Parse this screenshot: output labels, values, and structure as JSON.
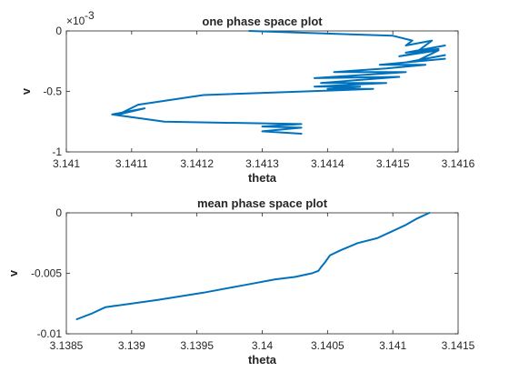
{
  "chart_data": [
    {
      "type": "line",
      "title": "one phase space plot",
      "xlabel": "theta",
      "ylabel": "v",
      "xlim": [
        3.141,
        3.1416
      ],
      "ylim": [
        -0.001,
        0
      ],
      "x_ticks": [
        3.141,
        3.1411,
        3.1412,
        3.1413,
        3.1414,
        3.1415,
        3.1416
      ],
      "x_tick_labels": [
        "3.141",
        "3.1411",
        "3.1412",
        "3.1413",
        "3.1414",
        "3.1415",
        "3.1416"
      ],
      "y_ticks": [
        0,
        -0.0005,
        -0.001
      ],
      "y_tick_labels": [
        "0",
        "-0.5",
        "-1"
      ],
      "y_exponent": {
        "base": "×10",
        "power": "-3"
      },
      "grid": false,
      "color": "#0072BD",
      "series": [
        {
          "x": [
            3.14128,
            3.1415,
            3.14153,
            3.14152,
            3.14156,
            3.14154,
            3.14158,
            3.14152,
            3.14157,
            3.14151,
            3.14157,
            3.14154,
            3.14158,
            3.14152,
            3.14158,
            3.14148,
            3.14155,
            3.14149,
            3.14141,
            3.14152,
            3.14138,
            3.14151,
            3.14139,
            3.14149,
            3.14138,
            3.14145,
            3.1414,
            3.14147,
            3.14121,
            3.14111,
            3.14108,
            3.14112,
            3.14107,
            3.14115,
            3.14136,
            3.1413,
            3.14136,
            3.1413,
            3.14136
          ],
          "y": [
            0,
            -4e-05,
            -8e-05,
            -0.00012,
            -8e-05,
            -0.00016,
            -0.00012,
            -0.00018,
            -0.00015,
            -0.00021,
            -0.00016,
            -0.00024,
            -0.0002,
            -0.00026,
            -0.00023,
            -0.00028,
            -0.00028,
            -0.00031,
            -0.00034,
            -0.00034,
            -0.00039,
            -0.00038,
            -0.00043,
            -0.00043,
            -0.00046,
            -0.00046,
            -0.00048,
            -0.00048,
            -0.00053,
            -0.00061,
            -0.00069,
            -0.00064,
            -0.00069,
            -0.00075,
            -0.00077,
            -0.00079,
            -0.0008,
            -0.00083,
            -0.00085
          ]
        }
      ]
    },
    {
      "type": "line",
      "title": "mean phase space plot",
      "xlabel": "theta",
      "ylabel": "v",
      "xlim": [
        3.1385,
        3.1415
      ],
      "ylim": [
        -0.01,
        0
      ],
      "x_ticks": [
        3.1385,
        3.139,
        3.1395,
        3.14,
        3.1405,
        3.141,
        3.1415
      ],
      "x_tick_labels": [
        "3.1385",
        "3.139",
        "3.1395",
        "3.14",
        "3.1405",
        "3.141",
        "3.1415"
      ],
      "y_ticks": [
        0,
        -0.005,
        -0.01
      ],
      "y_tick_labels": [
        "0",
        "-0.005",
        "-0.01"
      ],
      "grid": false,
      "color": "#0072BD",
      "series": [
        {
          "x": [
            3.14128,
            3.14118,
            3.1411,
            3.14098,
            3.14088,
            3.14073,
            3.1406,
            3.14052,
            3.14048,
            3.14045,
            3.14043,
            3.14038,
            3.14025,
            3.1401,
            3.13985,
            3.13955,
            3.1392,
            3.1388,
            3.1387,
            3.13858
          ],
          "y": [
            0,
            -0.0005,
            -0.001,
            -0.0016,
            -0.0021,
            -0.0025,
            -0.0031,
            -0.0035,
            -0.0041,
            -0.0045,
            -0.0048,
            -0.005,
            -0.0053,
            -0.0055,
            -0.006,
            -0.0066,
            -0.0072,
            -0.0078,
            -0.0083,
            -0.0088
          ]
        }
      ]
    }
  ]
}
